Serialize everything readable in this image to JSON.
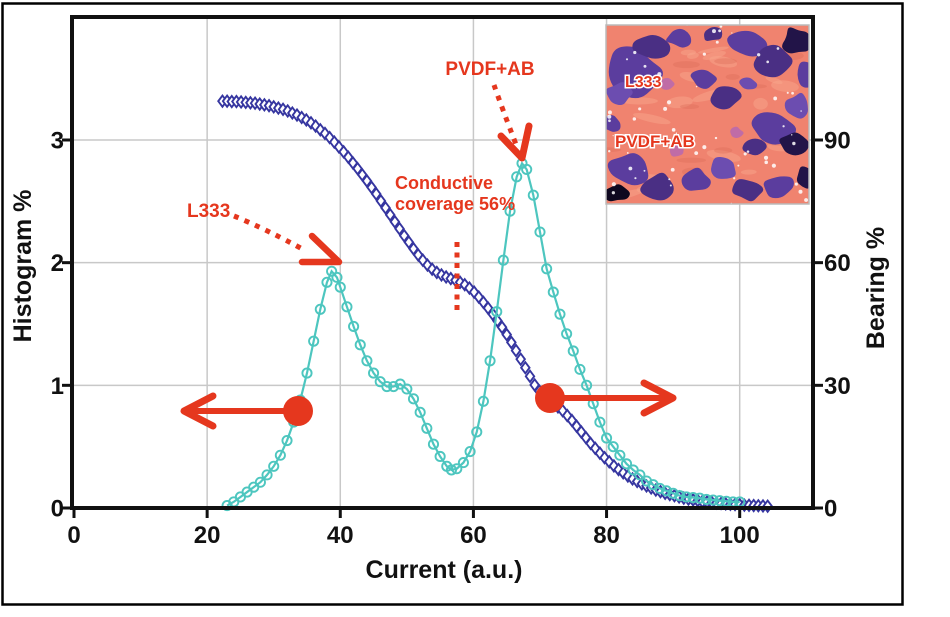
{
  "figure": {
    "description": "Dual-axis plot of histogram and bearing curves versus current, with SEM-style conductivity map inset",
    "border_color": "#000000",
    "background": "#ffffff"
  },
  "axes": {
    "x": {
      "label": "Current (a.u.)",
      "ticks": [
        0,
        20,
        40,
        60,
        80,
        100
      ]
    },
    "y_left": {
      "label": "Histogram %",
      "ticks": [
        0,
        1,
        2,
        3
      ]
    },
    "y_right": {
      "label": "Bearing %",
      "ticks": [
        0,
        30,
        60,
        90
      ]
    }
  },
  "annotations": {
    "pvdf_label": "PVDF+AB",
    "l333_label": "L333",
    "conductive_line1": "Conductive",
    "conductive_line2": "coverage 56%"
  },
  "inset": {
    "label_top": "L333",
    "label_bottom": "PVDF+AB"
  },
  "colors": {
    "histogram_series": "#4DC6BF",
    "bearing_series": "#3636A0",
    "annotation_red": "#E5371E",
    "gridline": "#C8C8C8",
    "axis": "#111111",
    "inset_matrix_salmon": "#F0836F",
    "inset_particle_purple": "#5B3D9E"
  },
  "chart_data": {
    "type": "line",
    "title": "",
    "xlabel": "Current (a.u.)",
    "xlim": [
      0,
      111
    ],
    "xticks": [
      0,
      20,
      40,
      60,
      80,
      100
    ],
    "grid": true,
    "left_axis": {
      "label": "Histogram %",
      "ylim": [
        0,
        4
      ],
      "ticks": [
        0,
        1,
        2,
        3
      ]
    },
    "right_axis": {
      "label": "Bearing %",
      "ylim": [
        0,
        120
      ],
      "ticks": [
        0,
        30,
        60,
        90
      ]
    },
    "series": [
      {
        "name": "Histogram",
        "axis": "left",
        "marker": "circle",
        "color": "#4DC6BF",
        "points": [
          [
            23,
            0.02
          ],
          [
            24,
            0.05
          ],
          [
            25,
            0.09
          ],
          [
            26,
            0.13
          ],
          [
            27,
            0.17
          ],
          [
            28,
            0.21
          ],
          [
            29,
            0.27
          ],
          [
            30,
            0.34
          ],
          [
            31,
            0.43
          ],
          [
            32,
            0.55
          ],
          [
            33,
            0.7
          ],
          [
            34,
            0.88
          ],
          [
            35,
            1.1
          ],
          [
            36,
            1.36
          ],
          [
            37,
            1.62
          ],
          [
            38,
            1.84
          ],
          [
            38.7,
            1.93
          ],
          [
            39.5,
            1.88
          ],
          [
            40,
            1.8
          ],
          [
            41,
            1.64
          ],
          [
            42,
            1.48
          ],
          [
            43,
            1.33
          ],
          [
            44,
            1.2
          ],
          [
            45,
            1.1
          ],
          [
            46,
            1.03
          ],
          [
            47,
            0.99
          ],
          [
            48,
            0.99
          ],
          [
            49,
            1.01
          ],
          [
            50,
            0.97
          ],
          [
            51,
            0.89
          ],
          [
            52,
            0.78
          ],
          [
            53,
            0.65
          ],
          [
            54,
            0.52
          ],
          [
            55,
            0.42
          ],
          [
            56,
            0.34
          ],
          [
            56.7,
            0.31
          ],
          [
            57.5,
            0.32
          ],
          [
            58.5,
            0.37
          ],
          [
            59.5,
            0.46
          ],
          [
            60.5,
            0.62
          ],
          [
            61.5,
            0.87
          ],
          [
            62.5,
            1.2
          ],
          [
            63.5,
            1.6
          ],
          [
            64.5,
            2.02
          ],
          [
            65.5,
            2.42
          ],
          [
            66.5,
            2.7
          ],
          [
            67.3,
            2.81
          ],
          [
            68,
            2.76
          ],
          [
            69,
            2.55
          ],
          [
            70,
            2.25
          ],
          [
            71,
            1.95
          ],
          [
            72,
            1.76
          ],
          [
            73,
            1.58
          ],
          [
            74,
            1.42
          ],
          [
            75,
            1.28
          ],
          [
            76,
            1.13
          ],
          [
            77,
            1.0
          ],
          [
            78,
            0.85
          ],
          [
            79,
            0.7
          ],
          [
            80,
            0.57
          ],
          [
            81,
            0.5
          ],
          [
            82,
            0.43
          ],
          [
            83,
            0.36
          ],
          [
            84,
            0.31
          ],
          [
            85,
            0.27
          ],
          [
            86,
            0.22
          ],
          [
            87,
            0.19
          ],
          [
            88,
            0.16
          ],
          [
            89,
            0.14
          ],
          [
            90,
            0.12
          ],
          [
            91,
            0.1
          ],
          [
            92,
            0.09
          ],
          [
            93,
            0.085
          ],
          [
            94,
            0.08
          ],
          [
            95,
            0.07
          ],
          [
            96,
            0.065
          ],
          [
            97,
            0.06
          ],
          [
            98,
            0.055
          ],
          [
            99,
            0.05
          ],
          [
            100,
            0.05
          ]
        ]
      },
      {
        "name": "Bearing",
        "axis": "right",
        "marker": "diamond",
        "color": "#3636A0",
        "points": [
          [
            22.3,
            99.5
          ],
          [
            23,
            99.5
          ],
          [
            23.7,
            99.4
          ],
          [
            24.4,
            99.4
          ],
          [
            25.1,
            99.3
          ],
          [
            25.8,
            99.2
          ],
          [
            26.5,
            99.1
          ],
          [
            27.2,
            99.0
          ],
          [
            27.9,
            98.8
          ],
          [
            28.6,
            98.6
          ],
          [
            29.3,
            98.4
          ],
          [
            30,
            98.1
          ],
          [
            30.7,
            97.8
          ],
          [
            31.4,
            97.5
          ],
          [
            32.1,
            97.1
          ],
          [
            32.8,
            96.6
          ],
          [
            33.5,
            96.1
          ],
          [
            34.2,
            95.5
          ],
          [
            34.9,
            94.9
          ],
          [
            35.6,
            94.2
          ],
          [
            36.3,
            93.4
          ],
          [
            37,
            92.5
          ],
          [
            37.7,
            91.6
          ],
          [
            38.4,
            90.6
          ],
          [
            39.1,
            89.5
          ],
          [
            39.8,
            88.3
          ],
          [
            40.5,
            87.1
          ],
          [
            41.2,
            85.8
          ],
          [
            41.9,
            84.4
          ],
          [
            42.6,
            83.0
          ],
          [
            43.3,
            81.5
          ],
          [
            44,
            80.0
          ],
          [
            44.7,
            78.4
          ],
          [
            45.4,
            76.8
          ],
          [
            46.1,
            75.1
          ],
          [
            46.8,
            73.4
          ],
          [
            47.5,
            71.7
          ],
          [
            48.2,
            70.0
          ],
          [
            48.9,
            68.3
          ],
          [
            49.6,
            66.6
          ],
          [
            50.3,
            65.0
          ],
          [
            51,
            63.4
          ],
          [
            51.7,
            61.9
          ],
          [
            52.4,
            60.6
          ],
          [
            53.1,
            59.4
          ],
          [
            53.8,
            58.4
          ],
          [
            54.5,
            57.6
          ],
          [
            55.2,
            57.0
          ],
          [
            55.9,
            56.5
          ],
          [
            56.6,
            56.1
          ],
          [
            57.3,
            55.7
          ],
          [
            58,
            55.2
          ],
          [
            58.7,
            54.6
          ],
          [
            59.4,
            53.8
          ],
          [
            60.1,
            52.8
          ],
          [
            60.8,
            51.6
          ],
          [
            61.5,
            50.3
          ],
          [
            62.2,
            48.9
          ],
          [
            62.9,
            47.4
          ],
          [
            63.6,
            45.8
          ],
          [
            64.3,
            44.2
          ],
          [
            65,
            42.4
          ],
          [
            65.7,
            40.5
          ],
          [
            66.4,
            38.5
          ],
          [
            67.1,
            36.4
          ],
          [
            67.8,
            34.3
          ],
          [
            68.5,
            32.2
          ],
          [
            69.2,
            30.1
          ],
          [
            69.9,
            28.6
          ],
          [
            70.6,
            27.5
          ],
          [
            71.3,
            26.6
          ],
          [
            72,
            25.6
          ],
          [
            72.7,
            24.7
          ],
          [
            73.4,
            23.8
          ],
          [
            74.1,
            22.6
          ],
          [
            74.8,
            21.4
          ],
          [
            75.5,
            20.0
          ],
          [
            76.2,
            18.6
          ],
          [
            76.9,
            17.2
          ],
          [
            77.6,
            15.8
          ],
          [
            78.3,
            14.6
          ],
          [
            79,
            13.4
          ],
          [
            79.7,
            12.3
          ],
          [
            80.4,
            11.3
          ],
          [
            81.1,
            10.3
          ],
          [
            81.8,
            9.4
          ],
          [
            82.5,
            8.6
          ],
          [
            83.2,
            7.8
          ],
          [
            83.9,
            7.1
          ],
          [
            84.6,
            6.5
          ],
          [
            85.3,
            5.9
          ],
          [
            86,
            5.4
          ],
          [
            86.7,
            4.9
          ],
          [
            87.4,
            4.4
          ],
          [
            88.1,
            4.0
          ],
          [
            88.8,
            3.6
          ],
          [
            89.5,
            3.3
          ],
          [
            90.2,
            3.0
          ],
          [
            90.9,
            2.7
          ],
          [
            91.6,
            2.4
          ],
          [
            92.3,
            2.2
          ],
          [
            93,
            2.0
          ],
          [
            93.7,
            1.8
          ],
          [
            94.4,
            1.6
          ],
          [
            95.1,
            1.5
          ],
          [
            95.8,
            1.35
          ],
          [
            96.5,
            1.2
          ],
          [
            97.2,
            1.1
          ],
          [
            97.9,
            1.0
          ],
          [
            98.6,
            0.9
          ],
          [
            99.3,
            0.85
          ],
          [
            100,
            0.8
          ],
          [
            100.7,
            0.7
          ],
          [
            101.4,
            0.65
          ],
          [
            102.1,
            0.6
          ],
          [
            102.8,
            0.55
          ],
          [
            103.5,
            0.5
          ],
          [
            104.2,
            0.45
          ]
        ]
      }
    ],
    "annotations": [
      {
        "text": "L333",
        "style": "dotted-arrow",
        "points_to_xy": [
          40,
          2.0
        ],
        "targets": "Histogram peak 1"
      },
      {
        "text": "PVDF+AB",
        "style": "dotted-arrow",
        "points_to_xy": [
          67.5,
          2.85
        ],
        "targets": "Histogram peak 2"
      },
      {
        "text": "Conductive coverage 56%",
        "style": "dotted-vertical-line",
        "x": 57.5
      },
      {
        "symbol": "filled-circle-left-arrow",
        "on_series": "Histogram",
        "at_xy": [
          33.7,
          0.8
        ]
      },
      {
        "symbol": "filled-circle-right-arrow",
        "on_series": "Bearing",
        "at_xy": [
          71.5,
          27
        ]
      }
    ],
    "legend": "none"
  }
}
